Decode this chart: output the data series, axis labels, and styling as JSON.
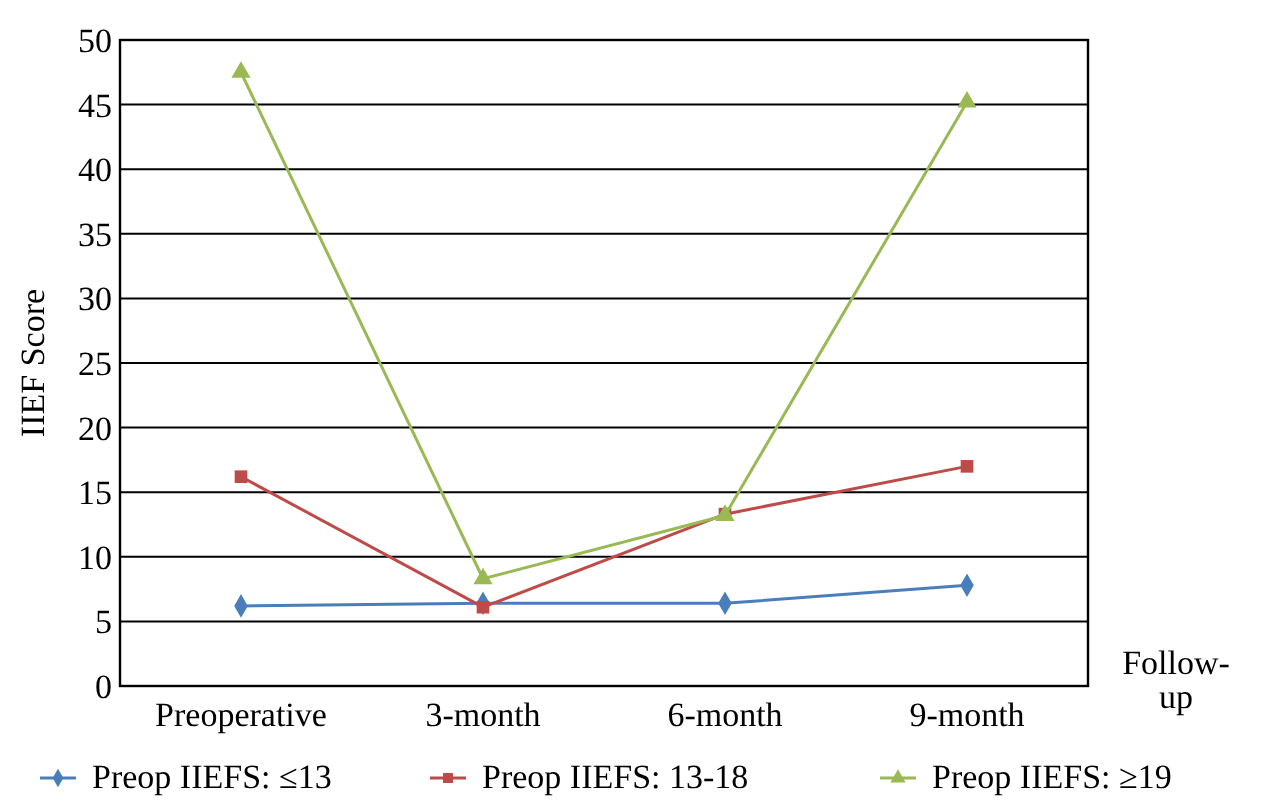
{
  "chart_data": {
    "type": "line",
    "xlabel": "Follow-up",
    "ylabel": "IIEF Score",
    "categories": [
      "Preoperative",
      "3-month",
      "6-month",
      "9-month"
    ],
    "series": [
      {
        "name": "Preop IIEFS: ≤13",
        "color": "#4a7ebb",
        "marker": "diamond",
        "values": [
          6.2,
          6.4,
          6.4,
          7.8
        ]
      },
      {
        "name": "Preop IIEFS: 13-18",
        "color": "#be4b48",
        "marker": "square",
        "values": [
          16.2,
          6.1,
          13.3,
          17.0
        ]
      },
      {
        "name": "Preop IIEFS: ≥19",
        "color": "#98b954",
        "marker": "triangle",
        "values": [
          47.5,
          8.3,
          13.2,
          45.2
        ]
      }
    ],
    "ylim": [
      0,
      50
    ],
    "yticks": [
      0,
      5,
      10,
      15,
      20,
      25,
      30,
      35,
      40,
      45,
      50
    ],
    "grid": "y",
    "legend": "bottom",
    "line_style": "solid"
  }
}
